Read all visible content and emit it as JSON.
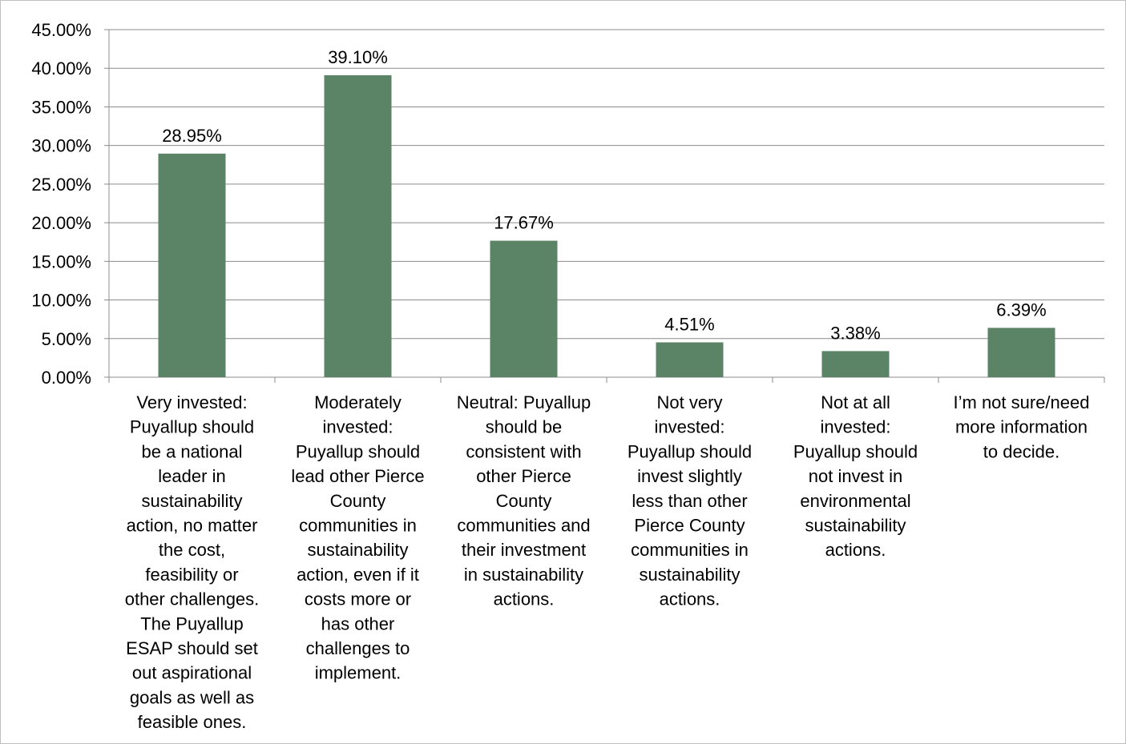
{
  "chart_data": {
    "type": "bar",
    "title": "",
    "xlabel": "",
    "ylabel": "",
    "ylim": [
      0,
      45
    ],
    "y_ticks": [
      "0.00%",
      "5.00%",
      "10.00%",
      "15.00%",
      "20.00%",
      "25.00%",
      "30.00%",
      "35.00%",
      "40.00%",
      "45.00%"
    ],
    "grid": true,
    "legend": "none",
    "bar_color": "#5b8466",
    "categories": [
      "Very invested: Puyallup should be a national leader in sustainability action, no matter the cost, feasibility or other challenges. The Puyallup ESAP should set out aspirational goals as well as feasible ones.",
      "Moderately invested: Puyallup should lead other Pierce County communities in sustainability action, even if it costs more or has other challenges to implement.",
      "Neutral: Puyallup should be consistent with other Pierce County communities and their investment in sustainability actions.",
      "Not very invested: Puyallup should invest slightly less than other Pierce County communities in sustainability actions.",
      "Not at all invested: Puyallup should not invest in environmental sustainability actions.",
      "I’m not sure/need more information to decide."
    ],
    "category_lines": [
      [
        "Very invested:",
        "Puyallup should",
        "be a national",
        "leader in",
        "sustainability",
        "action, no matter",
        "the cost,",
        "feasibility or",
        "other challenges.",
        "The Puyallup",
        "ESAP should set",
        "out aspirational",
        "goals as well as",
        "feasible ones."
      ],
      [
        "Moderately",
        "invested:",
        "Puyallup should",
        "lead other Pierce",
        "County",
        "communities in",
        "sustainability",
        "action, even if it",
        "costs more or",
        "has other",
        "challenges to",
        "implement."
      ],
      [
        "Neutral: Puyallup",
        "should be",
        "consistent with",
        "other Pierce",
        "County",
        "communities and",
        "their investment",
        "in sustainability",
        "actions."
      ],
      [
        "Not very",
        "invested:",
        "Puyallup should",
        "invest slightly",
        "less than other",
        "Pierce County",
        "communities in",
        "sustainability",
        "actions."
      ],
      [
        "Not at all",
        "invested:",
        "Puyallup should",
        "not invest in",
        "environmental",
        "sustainability",
        "actions."
      ],
      [
        "I’m not sure/need",
        "more information",
        "to decide."
      ]
    ],
    "values": [
      28.95,
      39.1,
      17.67,
      4.51,
      3.38,
      6.39
    ],
    "data_labels": [
      "28.95%",
      "39.10%",
      "17.67%",
      "4.51%",
      "3.38%",
      "6.39%"
    ]
  }
}
